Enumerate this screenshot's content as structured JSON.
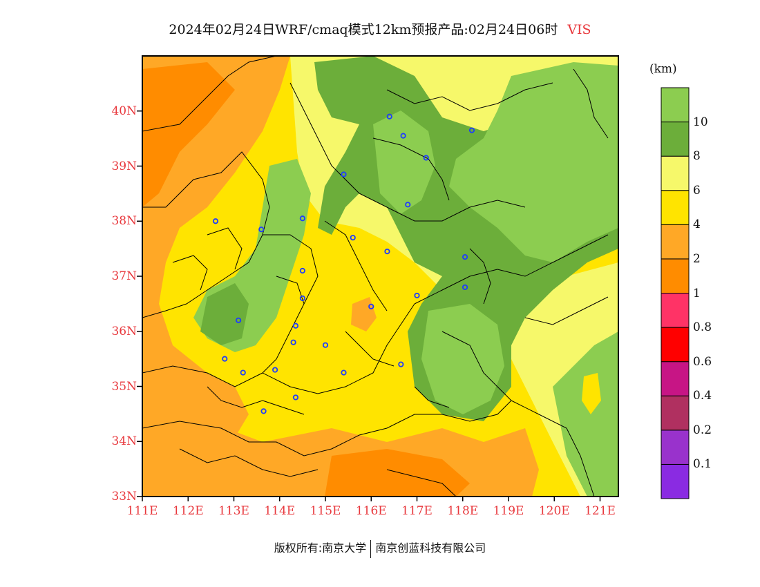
{
  "title": {
    "main": "2024年02月24日WRF/cmaq模式12km预报产品:02月24日06时",
    "variable": "VIS"
  },
  "colorbar": {
    "unit": "(km)",
    "levels": [
      {
        "color": "#8a2be2"
      },
      {
        "color": "#9932cc",
        "label": "0.1"
      },
      {
        "color": "#b03060",
        "label": "0.2"
      },
      {
        "color": "#c71585",
        "label": "0.4"
      },
      {
        "color": "#ff0000",
        "label": "0.6"
      },
      {
        "color": "#ff3366",
        "label": "0.8"
      },
      {
        "color": "#ff8c00",
        "label": "1"
      },
      {
        "color": "#ffa826",
        "label": "2"
      },
      {
        "color": "#ffe400",
        "label": "4"
      },
      {
        "color": "#f6f86a",
        "label": "6"
      },
      {
        "color": "#6cae3a",
        "label": "8"
      },
      {
        "color": "#8ccd50",
        "label": "10"
      }
    ]
  },
  "axes": {
    "lon_ticks": [
      "111E",
      "112E",
      "113E",
      "114E",
      "115E",
      "116E",
      "117E",
      "118E",
      "119E",
      "120E",
      "121E"
    ],
    "lat_ticks": [
      "33N",
      "34N",
      "35N",
      "36N",
      "37N",
      "38N",
      "39N",
      "40N"
    ],
    "lon_range": [
      111,
      121.4
    ],
    "lat_range": [
      33,
      41
    ]
  },
  "stations": [
    [
      112.6,
      38.0
    ],
    [
      113.6,
      37.85
    ],
    [
      114.5,
      38.05
    ],
    [
      114.5,
      37.1
    ],
    [
      114.5,
      36.6
    ],
    [
      113.1,
      36.2
    ],
    [
      114.35,
      36.1
    ],
    [
      114.3,
      35.8
    ],
    [
      115.0,
      35.75
    ],
    [
      113.9,
      35.3
    ],
    [
      113.2,
      35.25
    ],
    [
      112.8,
      35.5
    ],
    [
      114.35,
      34.8
    ],
    [
      113.65,
      34.55
    ],
    [
      115.4,
      35.25
    ],
    [
      116.0,
      36.45
    ],
    [
      115.6,
      37.7
    ],
    [
      116.35,
      37.45
    ],
    [
      116.65,
      35.4
    ],
    [
      117.0,
      36.65
    ],
    [
      118.05,
      36.8
    ],
    [
      118.05,
      37.35
    ],
    [
      116.8,
      38.3
    ],
    [
      115.4,
      38.85
    ],
    [
      116.4,
      39.9
    ],
    [
      116.7,
      39.55
    ],
    [
      117.2,
      39.15
    ],
    [
      118.2,
      39.65
    ]
  ],
  "footer": {
    "copyright": "版权所有:南京大学",
    "company": "南京创蓝科技有限公司"
  }
}
